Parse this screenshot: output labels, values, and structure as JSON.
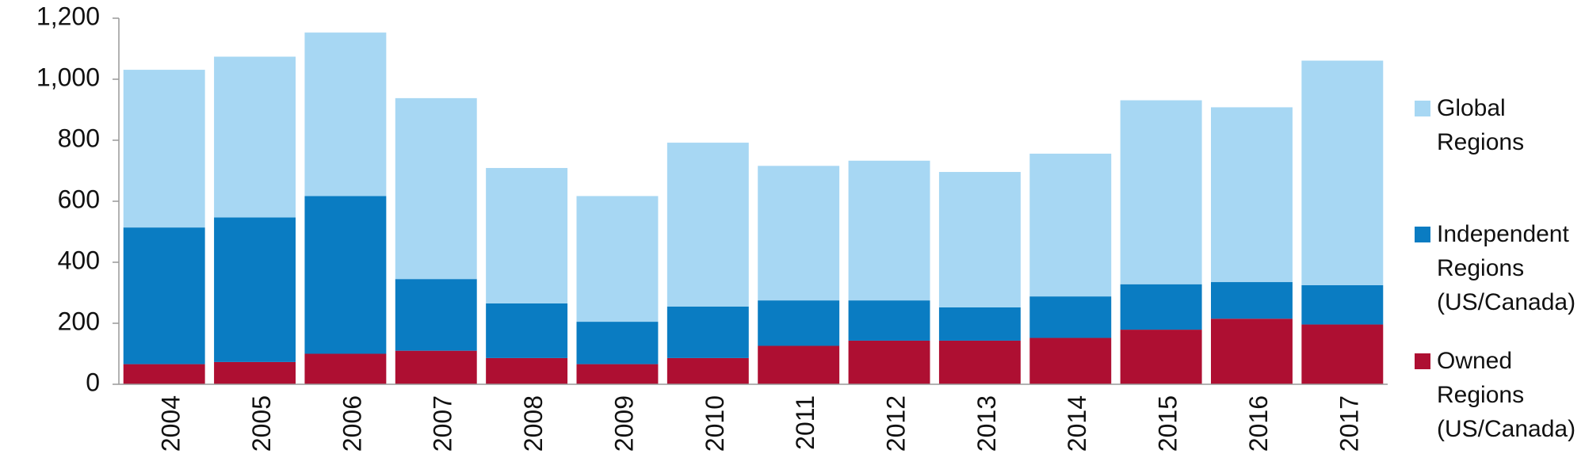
{
  "chart_data": {
    "type": "stacked-bar",
    "categories": [
      "2004",
      "2005",
      "2006",
      "2007",
      "2008",
      "2009",
      "2010",
      "2011",
      "2012",
      "2013",
      "2014",
      "2015",
      "2016",
      "2017"
    ],
    "series": [
      {
        "name": "Owned Regions (US/Canada)",
        "color": "#ae0f32",
        "values": [
          66,
          73,
          100,
          110,
          86,
          66,
          86,
          126,
          143,
          143,
          152,
          179,
          215,
          196
        ]
      },
      {
        "name": "Independent Regions (US/Canada)",
        "color": "#0a7cc2",
        "values": [
          448,
          474,
          517,
          235,
          179,
          139,
          169,
          149,
          132,
          109,
          136,
          149,
          120,
          129
        ]
      },
      {
        "name": "Global Regions",
        "color": "#a7d7f3",
        "values": [
          517,
          527,
          536,
          593,
          444,
          412,
          537,
          441,
          458,
          444,
          468,
          603,
          573,
          736
        ]
      }
    ],
    "ylim": [
      0,
      1200
    ],
    "yticks": [
      0,
      200,
      400,
      600,
      800,
      {
        "value": 1000,
        "label": "1,000"
      },
      {
        "value": 1200,
        "label": "1,200"
      }
    ],
    "grid": false,
    "legend": "right"
  }
}
